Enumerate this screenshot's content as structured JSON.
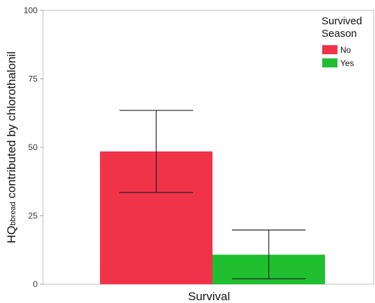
{
  "chart_data": {
    "type": "bar",
    "xlabel": "Survival",
    "ylabel": {
      "prefix": "HQ",
      "subscript": "bbread",
      "suffix": " contributed by chlorothalonil"
    },
    "ylim": [
      0,
      100
    ],
    "yticks": [
      0,
      25,
      50,
      75,
      100
    ],
    "categories": [
      "No",
      "Yes"
    ],
    "values": [
      48.5,
      10.8
    ],
    "error_low": [
      33.5,
      2.0
    ],
    "error_high": [
      63.5,
      19.8
    ],
    "colors": [
      "#f1334a",
      "#1fbf2f"
    ],
    "legend": {
      "title_lines": [
        "Survived",
        "Season"
      ],
      "entries": [
        "No",
        "Yes"
      ],
      "position": "top-right"
    },
    "grid": false
  }
}
